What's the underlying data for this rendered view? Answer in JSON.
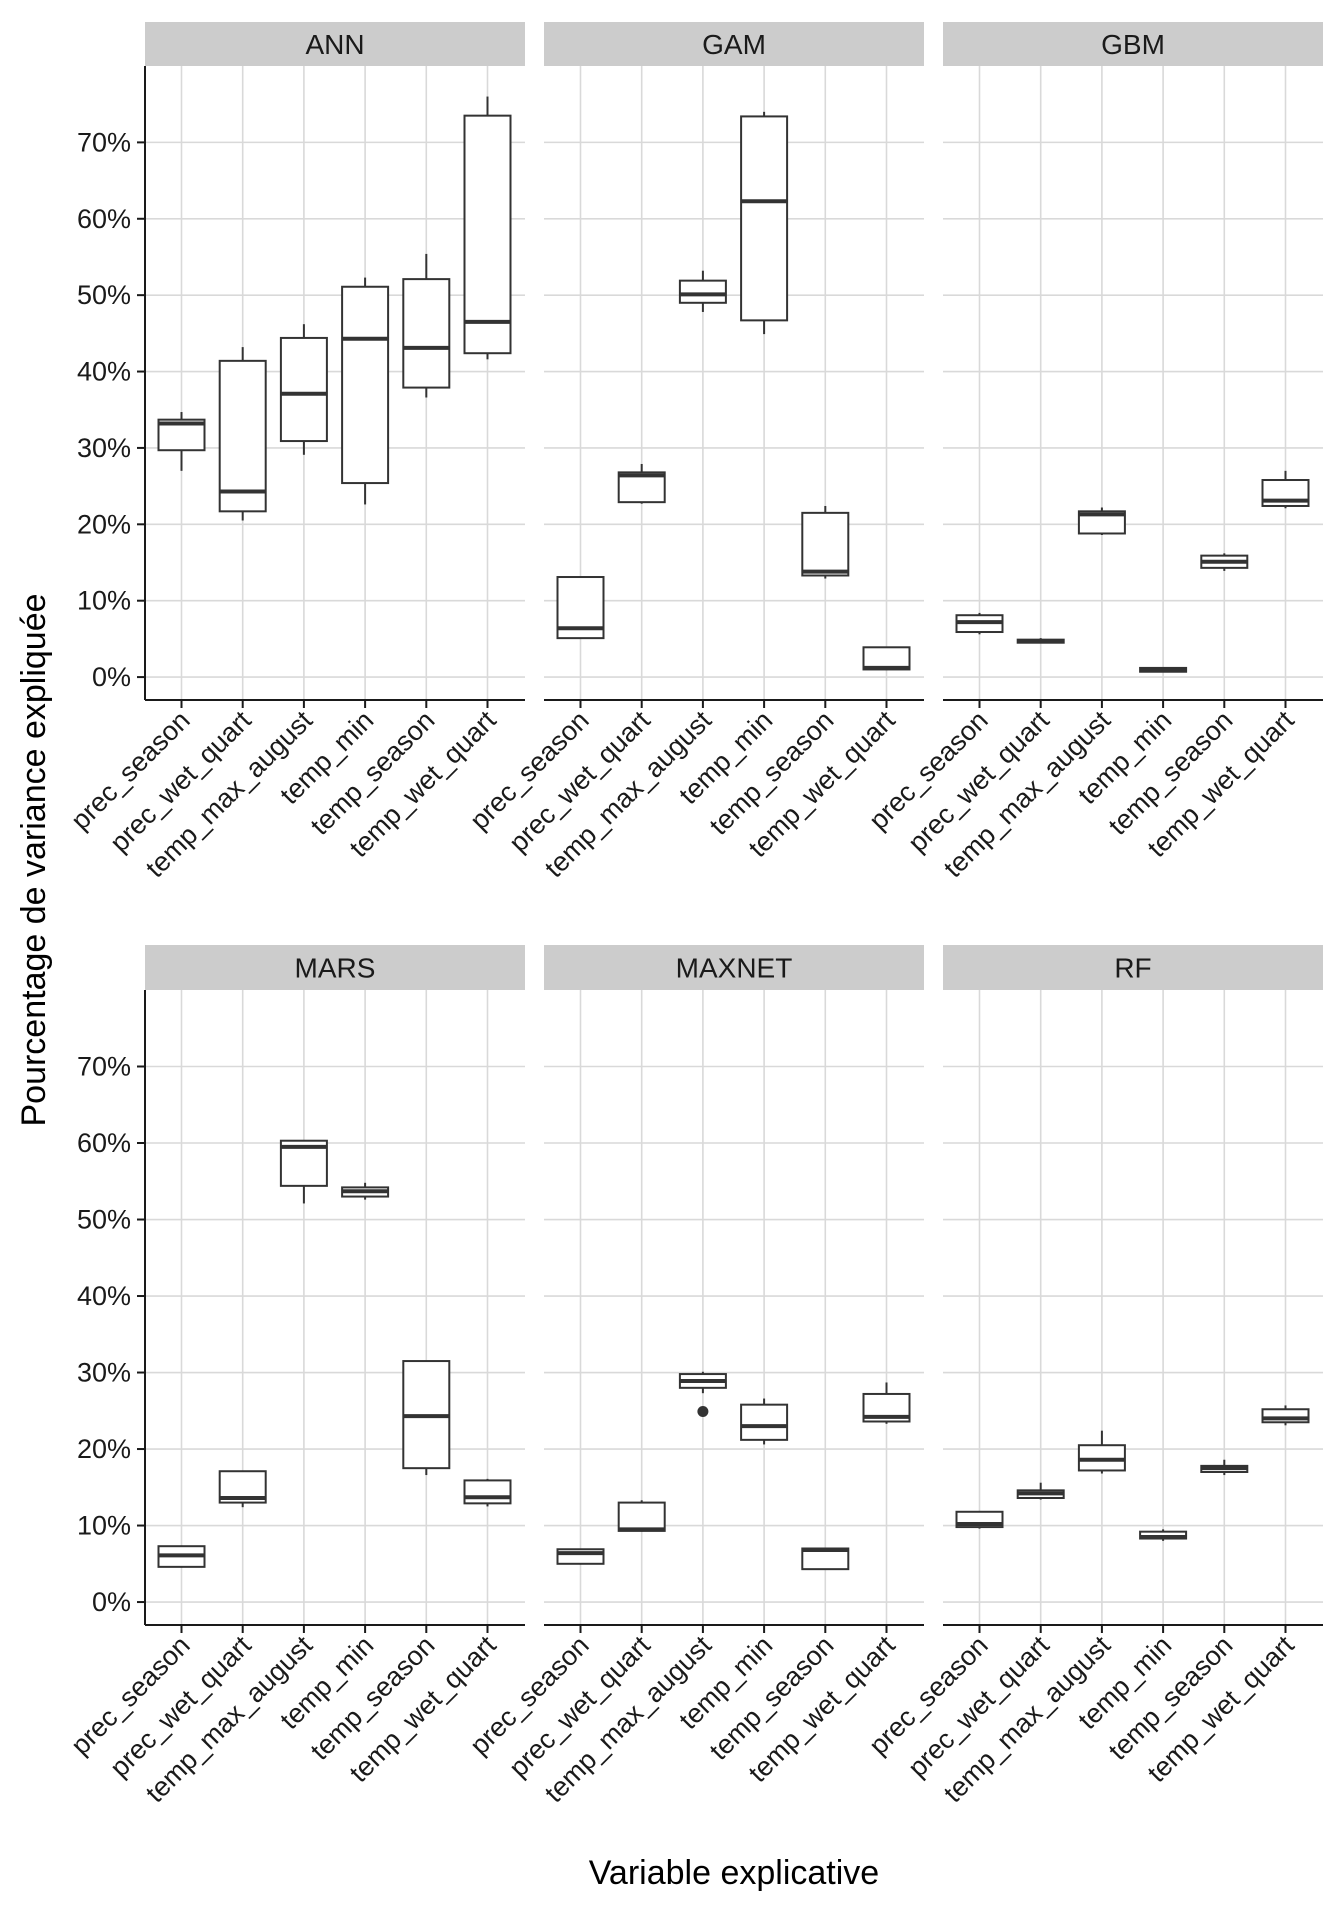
{
  "chart_data": {
    "type": "boxplot",
    "facet_layout": "2 rows x 3 columns",
    "xlabel": "Variable explicative",
    "ylabel": "Pourcentage de variance expliquée",
    "ylim": [
      -3,
      80
    ],
    "y_ticks": [
      0,
      10,
      20,
      30,
      40,
      50,
      60,
      70
    ],
    "y_tick_labels": [
      "0%",
      "10%",
      "20%",
      "30%",
      "40%",
      "50%",
      "60%",
      "70%"
    ],
    "categories": [
      "prec_season",
      "prec_wet_quart",
      "temp_max_august",
      "temp_min",
      "temp_season",
      "temp_wet_quart"
    ],
    "grid": true,
    "colors": {
      "panel_bg": "#ffffff",
      "grid": "#d9d9d9",
      "strip_bg": "#cccccc",
      "box_line": "#333333",
      "axis": "#1a1a1a"
    },
    "facets": [
      {
        "name": "ANN",
        "boxes": [
          {
            "category": "prec_season",
            "whisker_low": 27,
            "q1": 29.7,
            "median": 33.2,
            "q3": 33.7,
            "whisker_high": 34.7,
            "outliers": []
          },
          {
            "category": "prec_wet_quart",
            "whisker_low": 20.5,
            "q1": 21.7,
            "median": 24.3,
            "q3": 41.4,
            "whisker_high": 43.2,
            "outliers": []
          },
          {
            "category": "temp_max_august",
            "whisker_low": 29.1,
            "q1": 30.9,
            "median": 37.1,
            "q3": 44.4,
            "whisker_high": 46.2,
            "outliers": []
          },
          {
            "category": "temp_min",
            "whisker_low": 22.6,
            "q1": 25.4,
            "median": 44.3,
            "q3": 51.1,
            "whisker_high": 52.3,
            "outliers": []
          },
          {
            "category": "temp_season",
            "whisker_low": 36.6,
            "q1": 37.9,
            "median": 43.1,
            "q3": 52.1,
            "whisker_high": 55.4,
            "outliers": []
          },
          {
            "category": "temp_wet_quart",
            "whisker_low": 41.6,
            "q1": 42.4,
            "median": 46.5,
            "q3": 73.5,
            "whisker_high": 76,
            "outliers": []
          }
        ]
      },
      {
        "name": "GAM",
        "boxes": [
          {
            "category": "prec_season",
            "whisker_low": 5,
            "q1": 5.1,
            "median": 6.4,
            "q3": 13.1,
            "whisker_high": 13.1,
            "outliers": []
          },
          {
            "category": "prec_wet_quart",
            "whisker_low": 22.7,
            "q1": 22.9,
            "median": 26.4,
            "q3": 26.8,
            "whisker_high": 27.9,
            "outliers": []
          },
          {
            "category": "temp_max_august",
            "whisker_low": 47.8,
            "q1": 49,
            "median": 50.1,
            "q3": 51.9,
            "whisker_high": 53.2,
            "outliers": []
          },
          {
            "category": "temp_min",
            "whisker_low": 44.9,
            "q1": 46.7,
            "median": 62.3,
            "q3": 73.4,
            "whisker_high": 74,
            "outliers": []
          },
          {
            "category": "temp_season",
            "whisker_low": 12.9,
            "q1": 13.3,
            "median": 13.8,
            "q3": 21.5,
            "whisker_high": 22.4,
            "outliers": []
          },
          {
            "category": "temp_wet_quart",
            "whisker_low": 0.9,
            "q1": 1,
            "median": 1.2,
            "q3": 3.9,
            "whisker_high": 3.9,
            "outliers": []
          }
        ]
      },
      {
        "name": "GBM",
        "boxes": [
          {
            "category": "prec_season",
            "whisker_low": 5.6,
            "q1": 5.9,
            "median": 7.2,
            "q3": 8.1,
            "whisker_high": 8.4,
            "outliers": []
          },
          {
            "category": "prec_wet_quart",
            "whisker_low": 4.4,
            "q1": 4.5,
            "median": 4.7,
            "q3": 4.9,
            "whisker_high": 5.1,
            "outliers": []
          },
          {
            "category": "temp_max_august",
            "whisker_low": 18.6,
            "q1": 18.8,
            "median": 21.3,
            "q3": 21.7,
            "whisker_high": 22.2,
            "outliers": []
          },
          {
            "category": "temp_min",
            "whisker_low": 0.6,
            "q1": 0.7,
            "median": 0.9,
            "q3": 1.2,
            "whisker_high": 1.3,
            "outliers": []
          },
          {
            "category": "temp_season",
            "whisker_low": 13.9,
            "q1": 14.3,
            "median": 15.1,
            "q3": 15.9,
            "whisker_high": 16.2,
            "outliers": []
          },
          {
            "category": "temp_wet_quart",
            "whisker_low": 22.1,
            "q1": 22.4,
            "median": 23.1,
            "q3": 25.8,
            "whisker_high": 27,
            "outliers": []
          }
        ]
      },
      {
        "name": "MARS",
        "boxes": [
          {
            "category": "prec_season",
            "whisker_low": 4.5,
            "q1": 4.6,
            "median": 6.1,
            "q3": 7.3,
            "whisker_high": 7.4,
            "outliers": []
          },
          {
            "category": "prec_wet_quart",
            "whisker_low": 12.4,
            "q1": 13,
            "median": 13.6,
            "q3": 17.1,
            "whisker_high": 17.1,
            "outliers": []
          },
          {
            "category": "temp_max_august",
            "whisker_low": 52.1,
            "q1": 54.4,
            "median": 59.5,
            "q3": 60.3,
            "whisker_high": 60.3,
            "outliers": []
          },
          {
            "category": "temp_min",
            "whisker_low": 52.6,
            "q1": 53,
            "median": 53.7,
            "q3": 54.2,
            "whisker_high": 54.8,
            "outliers": []
          },
          {
            "category": "temp_season",
            "whisker_low": 16.6,
            "q1": 17.5,
            "median": 24.3,
            "q3": 31.5,
            "whisker_high": 31.5,
            "outliers": []
          },
          {
            "category": "temp_wet_quart",
            "whisker_low": 12.5,
            "q1": 12.9,
            "median": 13.7,
            "q3": 15.9,
            "whisker_high": 16.1,
            "outliers": []
          }
        ]
      },
      {
        "name": "MAXNET",
        "boxes": [
          {
            "category": "prec_season",
            "whisker_low": 4.9,
            "q1": 5,
            "median": 6.4,
            "q3": 6.9,
            "whisker_high": 6.9,
            "outliers": []
          },
          {
            "category": "prec_wet_quart",
            "whisker_low": 9.2,
            "q1": 9.3,
            "median": 9.5,
            "q3": 13,
            "whisker_high": 13.3,
            "outliers": []
          },
          {
            "category": "temp_max_august",
            "whisker_low": 27.3,
            "q1": 28,
            "median": 28.9,
            "q3": 29.8,
            "whisker_high": 30.1,
            "outliers": [
              24.9
            ]
          },
          {
            "category": "temp_min",
            "whisker_low": 20.6,
            "q1": 21.2,
            "median": 23,
            "q3": 25.8,
            "whisker_high": 26.6,
            "outliers": []
          },
          {
            "category": "temp_season",
            "whisker_low": 4.2,
            "q1": 4.3,
            "median": 6.8,
            "q3": 7,
            "whisker_high": 7.1,
            "outliers": []
          },
          {
            "category": "temp_wet_quart",
            "whisker_low": 23.3,
            "q1": 23.6,
            "median": 24.2,
            "q3": 27.2,
            "whisker_high": 28.7,
            "outliers": []
          }
        ]
      },
      {
        "name": "RF",
        "boxes": [
          {
            "category": "prec_season",
            "whisker_low": 9.6,
            "q1": 9.8,
            "median": 10.2,
            "q3": 11.8,
            "whisker_high": 11.9,
            "outliers": []
          },
          {
            "category": "prec_wet_quart",
            "whisker_low": 13.4,
            "q1": 13.6,
            "median": 14.2,
            "q3": 14.6,
            "whisker_high": 15.6,
            "outliers": []
          },
          {
            "category": "temp_max_august",
            "whisker_low": 16.8,
            "q1": 17.2,
            "median": 18.6,
            "q3": 20.5,
            "whisker_high": 22.4,
            "outliers": []
          },
          {
            "category": "temp_min",
            "whisker_low": 8,
            "q1": 8.3,
            "median": 8.5,
            "q3": 9.2,
            "whisker_high": 9.5,
            "outliers": []
          },
          {
            "category": "temp_season",
            "whisker_low": 16.6,
            "q1": 17,
            "median": 17.5,
            "q3": 17.8,
            "whisker_high": 18.6,
            "outliers": []
          },
          {
            "category": "temp_wet_quart",
            "whisker_low": 23.1,
            "q1": 23.5,
            "median": 24,
            "q3": 25.2,
            "whisker_high": 25.7,
            "outliers": []
          }
        ]
      }
    ]
  }
}
